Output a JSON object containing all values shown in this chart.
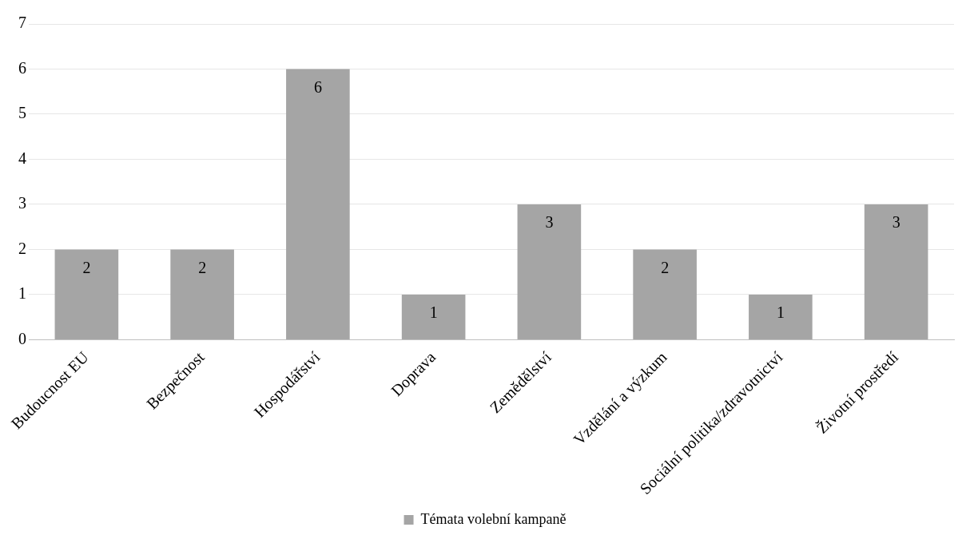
{
  "chart_data": {
    "type": "bar",
    "categories": [
      "Budoucnost EU",
      "Bezpečnost",
      "Hospodářství",
      "Doprava",
      "Zemědělství",
      "Vzdělání a výzkum",
      "Sociální politika/zdravotnictví",
      "Životní prostředí"
    ],
    "series": [
      {
        "name": "Témata volební kampaně",
        "color": "#a5a5a5",
        "values": [
          2,
          2,
          6,
          1,
          3,
          2,
          1,
          3
        ]
      }
    ],
    "ylim": [
      0,
      7
    ],
    "yticks": [
      0,
      1,
      2,
      3,
      4,
      5,
      6,
      7
    ],
    "grid": "y",
    "legend": "bottom",
    "data_labels": true
  }
}
